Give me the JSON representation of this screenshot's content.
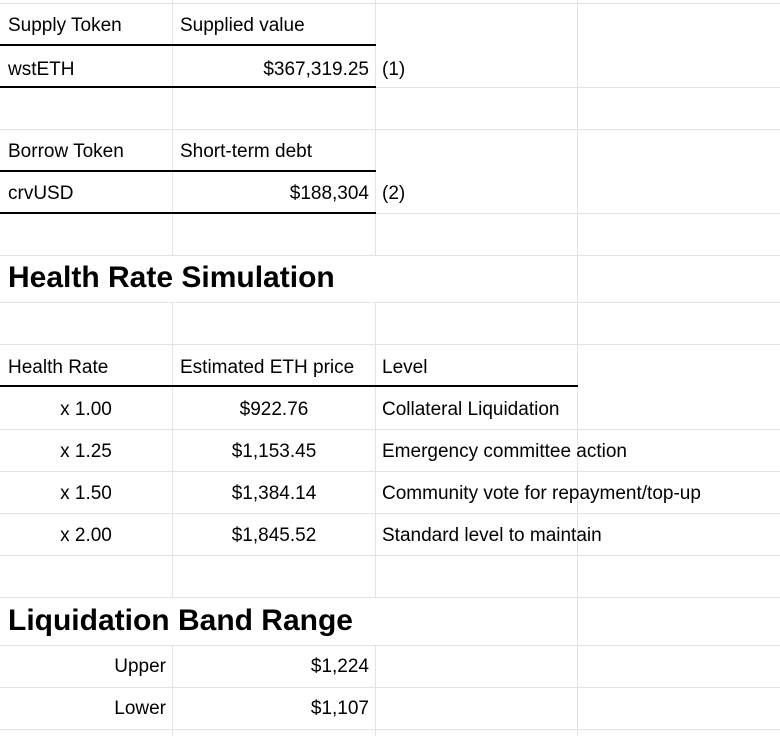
{
  "supply": {
    "header_token": "Supply Token",
    "header_value": "Supplied value",
    "token": "wstETH",
    "value": "$367,319.25",
    "note": "(1)"
  },
  "borrow": {
    "header_token": "Borrow Token",
    "header_value": "Short-term debt",
    "token": "crvUSD",
    "value": "$188,304",
    "note": "(2)"
  },
  "health": {
    "title": "Health Rate Simulation",
    "col_rate": "Health Rate",
    "col_price": "Estimated ETH price",
    "col_level": "Level",
    "rows": [
      {
        "rate": "x 1.00",
        "price": "$922.76",
        "level": "Collateral Liquidation"
      },
      {
        "rate": "x 1.25",
        "price": "$1,153.45",
        "level": "Emergency committee action"
      },
      {
        "rate": "x 1.50",
        "price": "$1,384.14",
        "level": "Community vote for repayment/top-up"
      },
      {
        "rate": "x 2.00",
        "price": "$1,845.52",
        "level": "Standard level to maintain"
      }
    ]
  },
  "band": {
    "title": "Liquidation Band Range",
    "upper_label": "Upper",
    "upper_value": "$1,224",
    "lower_label": "Lower",
    "lower_value": "$1,107"
  }
}
